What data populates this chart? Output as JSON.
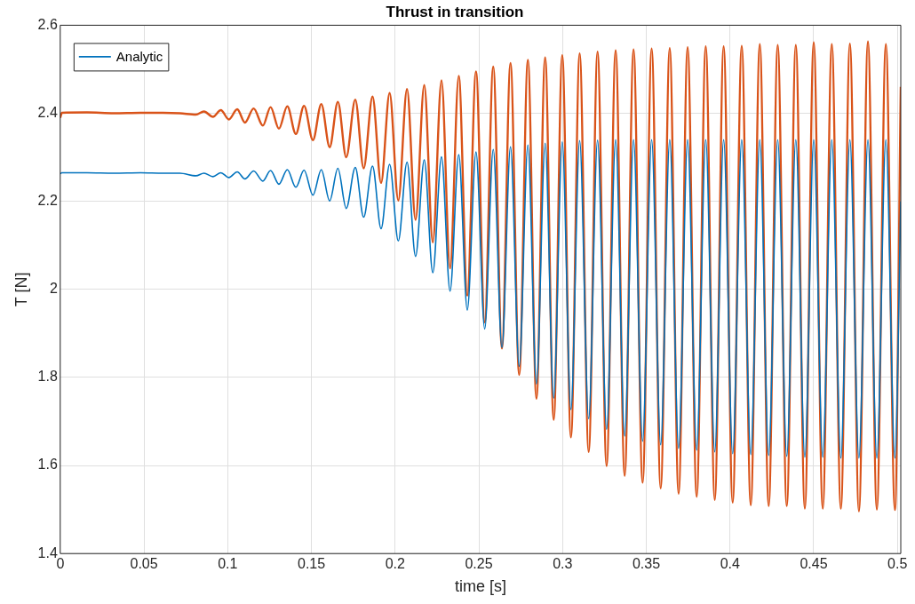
{
  "chart_data": {
    "type": "line",
    "title": "Thrust in transition",
    "xlabel": "time [s]",
    "ylabel": "T [N]",
    "x": [
      0,
      0.001,
      0.016,
      0.032,
      0.048,
      0.0613,
      0.0714,
      0.081,
      0.0858,
      0.0912,
      0.0959,
      0.1007,
      0.1057,
      0.1103,
      0.1155,
      0.121,
      0.1256,
      0.1306,
      0.1356,
      0.1407,
      0.1456,
      0.1509,
      0.1559,
      0.1609,
      0.1658,
      0.1708,
      0.1762,
      0.1812,
      0.1865,
      0.1916,
      0.1967,
      0.2019,
      0.2071,
      0.2122,
      0.2174,
      0.2225,
      0.2277,
      0.2328,
      0.238,
      0.2431,
      0.2483,
      0.2535,
      0.2586,
      0.2638,
      0.2689,
      0.2741,
      0.2793,
      0.2844,
      0.2896,
      0.2947,
      0.2998,
      0.305,
      0.3102,
      0.3156,
      0.3209,
      0.3263,
      0.3317,
      0.3371,
      0.3424,
      0.3478,
      0.3532,
      0.3586,
      0.364,
      0.3693,
      0.3747,
      0.3801,
      0.3855,
      0.3909,
      0.3962,
      0.4016,
      0.407,
      0.4124,
      0.4178,
      0.4231,
      0.4285,
      0.4339,
      0.4393,
      0.4447,
      0.45,
      0.4554,
      0.4608,
      0.4662,
      0.4716,
      0.477,
      0.4824,
      0.4877,
      0.4931,
      0.4985,
      0.502
    ],
    "series": [
      {
        "name": "Analytic",
        "color": "#0072bd",
        "values": [
          2.263,
          2.265,
          2.265,
          2.264,
          2.265,
          2.264,
          2.264,
          2.258,
          2.264,
          2.256,
          2.265,
          2.254,
          2.267,
          2.251,
          2.269,
          2.246,
          2.27,
          2.239,
          2.272,
          2.232,
          2.271,
          2.214,
          2.272,
          2.201,
          2.275,
          2.184,
          2.277,
          2.164,
          2.28,
          2.138,
          2.284,
          2.11,
          2.289,
          2.075,
          2.294,
          2.038,
          2.301,
          1.996,
          2.306,
          1.953,
          2.312,
          1.91,
          2.318,
          1.868,
          2.324,
          1.825,
          2.328,
          1.785,
          2.332,
          1.753,
          2.335,
          1.727,
          2.338,
          1.706,
          2.339,
          1.682,
          2.34,
          1.667,
          2.34,
          1.655,
          2.34,
          1.647,
          2.34,
          1.639,
          2.34,
          1.635,
          2.34,
          1.631,
          2.34,
          1.627,
          2.34,
          1.625,
          2.34,
          1.623,
          2.34,
          1.621,
          2.34,
          1.619,
          2.34,
          1.619,
          2.34,
          1.617,
          2.34,
          1.617,
          2.34,
          1.617,
          2.34,
          1.617,
          2.2
        ]
      },
      {
        "color": "#d95319",
        "values": [
          2.39,
          2.401,
          2.402,
          2.4,
          2.401,
          2.401,
          2.4,
          2.397,
          2.404,
          2.392,
          2.407,
          2.386,
          2.409,
          2.379,
          2.411,
          2.372,
          2.414,
          2.365,
          2.416,
          2.353,
          2.417,
          2.339,
          2.421,
          2.323,
          2.426,
          2.3,
          2.431,
          2.275,
          2.438,
          2.242,
          2.446,
          2.202,
          2.455,
          2.158,
          2.464,
          2.107,
          2.475,
          2.048,
          2.485,
          1.986,
          2.495,
          1.925,
          2.506,
          1.866,
          2.514,
          1.806,
          2.521,
          1.752,
          2.527,
          1.704,
          2.532,
          1.664,
          2.536,
          1.631,
          2.54,
          1.599,
          2.543,
          1.577,
          2.545,
          1.561,
          2.547,
          1.548,
          2.548,
          1.536,
          2.55,
          1.529,
          2.552,
          1.522,
          2.552,
          1.516,
          2.553,
          1.51,
          2.557,
          1.508,
          2.555,
          1.508,
          2.555,
          1.502,
          2.561,
          1.502,
          2.557,
          1.502,
          2.558,
          1.496,
          2.563,
          1.5,
          2.557,
          1.499,
          2.46
        ]
      }
    ],
    "xlim": [
      0,
      0.502
    ],
    "xticks": [
      0,
      0.05,
      0.1,
      0.15,
      0.2,
      0.25,
      0.3,
      0.35,
      0.4,
      0.45,
      0.5
    ],
    "ylim": [
      1.4,
      2.6
    ],
    "yticks": [
      1.4,
      1.6,
      1.8,
      2,
      2.2,
      2.4,
      2.6
    ],
    "grid": true,
    "legend": "top left",
    "marker": "none",
    "line_style": "solid"
  }
}
